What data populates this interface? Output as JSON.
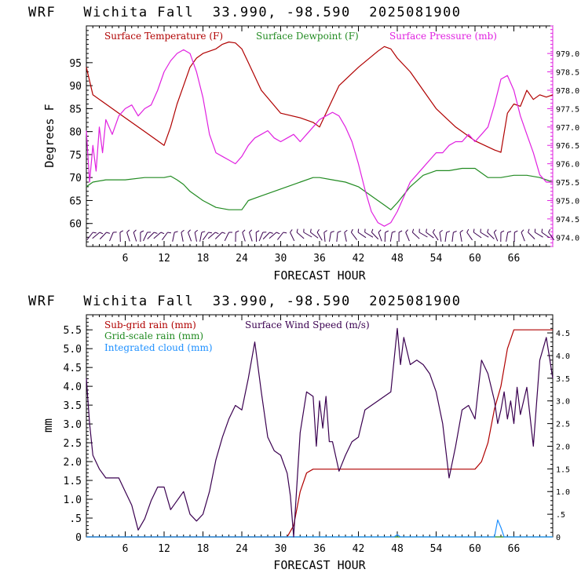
{
  "colors": {
    "temperature": "#b00000",
    "dewpoint": "#228b22",
    "pressure": "#e020e0",
    "subgrid_rain": "#b00000",
    "gridscale_rain": "#228b22",
    "cloud": "#1e90ff",
    "wind": "#3a0050",
    "axis_top": "#000000",
    "axis_right_top": "#e020e0"
  },
  "chart_data": [
    {
      "type": "line",
      "header": "WRF   Wichita Fall  33.990, -98.590  2025081900",
      "xlabel": "FORECAST HOUR",
      "ylabel": "Degrees F",
      "xlim": [
        0,
        72
      ],
      "ylim": [
        55,
        103
      ],
      "ylim_right": [
        973.75,
        979.75
      ],
      "x_ticks": [
        "6",
        "12",
        "18",
        "24",
        "30",
        "36",
        "42",
        "48",
        "54",
        "60",
        "66"
      ],
      "y_ticks": [
        "60",
        "65",
        "70",
        "75",
        "80",
        "85",
        "90",
        "95"
      ],
      "y_ticks_right": [
        "974.0",
        "974.5",
        "975.0",
        "975.5",
        "976.0",
        "976.5",
        "977.0",
        "977.5",
        "978.0",
        "978.5",
        "979.0"
      ],
      "grid": false,
      "legend_position": "top",
      "series": [
        {
          "name": "Surface Temperature (F)",
          "axis": "left",
          "x": [
            0,
            1,
            3,
            6,
            9,
            11,
            12,
            13,
            14,
            15,
            16,
            17,
            18,
            19,
            20,
            21,
            22,
            23,
            24,
            25,
            27,
            30,
            33,
            35,
            36,
            37,
            39,
            42,
            45,
            46,
            47,
            48,
            50,
            52,
            54,
            57,
            60,
            63,
            64,
            65,
            66,
            67,
            68,
            69,
            70,
            71,
            72
          ],
          "y": [
            94,
            88,
            86,
            83,
            80,
            78,
            77,
            81,
            86,
            90,
            94,
            96,
            97,
            97.5,
            98,
            99,
            99.5,
            99.3,
            98,
            95,
            89,
            84,
            83,
            82,
            81,
            84,
            90,
            94,
            97.5,
            98.5,
            98,
            96,
            93,
            89,
            85,
            81,
            78,
            76,
            75.5,
            84,
            86,
            85.5,
            89,
            87,
            88,
            87.5,
            88
          ]
        },
        {
          "name": "Surface Dewpoint (F)",
          "axis": "left",
          "x": [
            0,
            1,
            3,
            6,
            9,
            12,
            13,
            14,
            15,
            16,
            18,
            20,
            22,
            24,
            25,
            27,
            30,
            33,
            35,
            36,
            38,
            40,
            42,
            44,
            46,
            47,
            48,
            50,
            52,
            54,
            56,
            58,
            60,
            62,
            64,
            66,
            68,
            70,
            72
          ],
          "y": [
            68,
            69,
            69.5,
            69.5,
            70,
            70,
            70.3,
            69.5,
            68.5,
            67,
            65,
            63.5,
            63,
            63,
            65,
            66,
            67.5,
            69,
            70,
            70,
            69.5,
            69,
            68,
            66,
            64,
            63,
            64.5,
            68,
            70.5,
            71.5,
            71.5,
            72,
            72,
            70,
            70,
            70.5,
            70.5,
            70,
            69
          ]
        },
        {
          "name": "Surface Pressure (mb)",
          "axis": "right",
          "x": [
            0,
            0.5,
            1,
            1.5,
            2,
            2.5,
            3,
            4,
            5,
            6,
            7,
            8,
            9,
            10,
            11,
            12,
            13,
            14,
            15,
            16,
            17,
            18,
            19,
            20,
            21,
            22,
            23,
            24,
            25,
            26,
            27,
            28,
            29,
            30,
            31,
            32,
            33,
            34,
            35,
            36,
            37,
            38,
            39,
            40,
            41,
            42,
            43,
            44,
            45,
            46,
            47,
            48,
            49,
            50,
            51,
            52,
            53,
            54,
            55,
            56,
            57,
            58,
            59,
            60,
            61,
            62,
            63,
            64,
            65,
            66,
            67,
            68,
            69,
            70,
            71,
            72
          ],
          "y": [
            976.9,
            975.5,
            976.5,
            975.8,
            977.0,
            976.3,
            977.2,
            976.8,
            977.3,
            977.5,
            977.6,
            977.3,
            977.5,
            977.6,
            978.0,
            978.5,
            978.8,
            979.0,
            979.1,
            979.0,
            978.5,
            977.8,
            976.8,
            976.3,
            976.2,
            976.1,
            976.0,
            976.2,
            976.5,
            976.7,
            976.8,
            976.9,
            976.7,
            976.6,
            976.7,
            976.8,
            976.6,
            976.8,
            977.0,
            977.2,
            977.3,
            977.4,
            977.3,
            977.0,
            976.6,
            976.0,
            975.3,
            974.7,
            974.4,
            974.3,
            974.4,
            974.7,
            975.1,
            975.5,
            975.7,
            975.9,
            976.1,
            976.3,
            976.3,
            976.5,
            976.6,
            976.6,
            976.8,
            976.6,
            976.8,
            977.0,
            977.6,
            978.3,
            978.4,
            978.0,
            977.3,
            976.8,
            976.3,
            975.7,
            975.5,
            975.5
          ]
        }
      ]
    },
    {
      "type": "line",
      "header": "WRF   Wichita Fall  33.990, -98.590  2025081900",
      "xlabel": "FORECAST HOUR",
      "ylabel": "mm",
      "xlim": [
        0,
        72
      ],
      "ylim": [
        0,
        5.9
      ],
      "ylim_right": [
        0,
        4.9
      ],
      "x_ticks": [
        "6",
        "12",
        "18",
        "24",
        "30",
        "36",
        "42",
        "48",
        "54",
        "60",
        "66"
      ],
      "y_ticks": [
        "0",
        ".5",
        "1.0",
        "1.5",
        "2.0",
        "2.5",
        "3.0",
        "3.5",
        "4.0",
        "4.5",
        "5.0",
        "5.5"
      ],
      "y_ticks_right": [
        "0",
        ".5",
        "1.0",
        "1.5",
        "2.0",
        "2.5",
        "3.0",
        "3.5",
        "4.0",
        "4.5"
      ],
      "grid": false,
      "legend_position": "top-left",
      "series": [
        {
          "name": "Sub-grid rain (mm)",
          "axis": "left",
          "x": [
            0,
            31,
            32,
            33,
            34,
            35,
            36,
            60,
            61,
            62,
            63,
            64,
            65,
            66,
            72
          ],
          "y": [
            0,
            0,
            0.3,
            1.2,
            1.7,
            1.8,
            1.8,
            1.8,
            2.0,
            2.5,
            3.4,
            4.0,
            5.0,
            5.5,
            5.5
          ]
        },
        {
          "name": "Grid-scale rain (mm)",
          "axis": "left",
          "x": [
            0,
            72
          ],
          "y": [
            0,
            0
          ]
        },
        {
          "name": "Integrated cloud (mm)",
          "axis": "left",
          "x": [
            0,
            47.5,
            48,
            48.5,
            63,
            63.5,
            64,
            64.5,
            72
          ],
          "y": [
            0,
            0,
            0.06,
            0,
            0,
            0.45,
            0.25,
            0,
            0
          ]
        },
        {
          "name": "Surface Wind Speed (m/s)",
          "axis": "right",
          "x": [
            0,
            0.5,
            1,
            2,
            3,
            4,
            5,
            6,
            7,
            8,
            9,
            10,
            11,
            12,
            13,
            14,
            15,
            16,
            17,
            18,
            19,
            20,
            21,
            22,
            23,
            24,
            25,
            26,
            27,
            28,
            29,
            30,
            31,
            31.5,
            32,
            33,
            34,
            35,
            35.5,
            36,
            36.5,
            37,
            37.5,
            38,
            39,
            40,
            41,
            42,
            43,
            44,
            45,
            46,
            47,
            48,
            48.5,
            49,
            50,
            51,
            52,
            53,
            54,
            55,
            56,
            57,
            58,
            59,
            60,
            61,
            62,
            63,
            63.5,
            64,
            64.5,
            65,
            65.5,
            66,
            66.5,
            67,
            68,
            69,
            70,
            71,
            72
          ],
          "y": [
            3.5,
            2.5,
            1.8,
            1.5,
            1.3,
            1.3,
            1.3,
            1.0,
            0.7,
            0.15,
            0.4,
            0.8,
            1.1,
            1.1,
            0.6,
            0.8,
            1.0,
            0.5,
            0.35,
            0.5,
            1.0,
            1.7,
            2.2,
            2.6,
            2.9,
            2.8,
            3.5,
            4.3,
            3.2,
            2.2,
            1.9,
            1.8,
            1.4,
            0.9,
            0,
            2.3,
            3.2,
            3.1,
            2.0,
            3.0,
            2.4,
            3.1,
            2.1,
            2.1,
            1.45,
            1.8,
            2.1,
            2.2,
            2.8,
            2.9,
            3.0,
            3.1,
            3.2,
            4.6,
            3.8,
            4.4,
            3.8,
            3.9,
            3.8,
            3.6,
            3.2,
            2.5,
            1.3,
            2.0,
            2.8,
            2.9,
            2.6,
            3.9,
            3.6,
            3.0,
            2.5,
            2.8,
            3.2,
            2.6,
            3.0,
            2.5,
            3.3,
            2.7,
            3.3,
            2.0,
            3.9,
            4.4,
            3.5
          ]
        }
      ]
    }
  ]
}
